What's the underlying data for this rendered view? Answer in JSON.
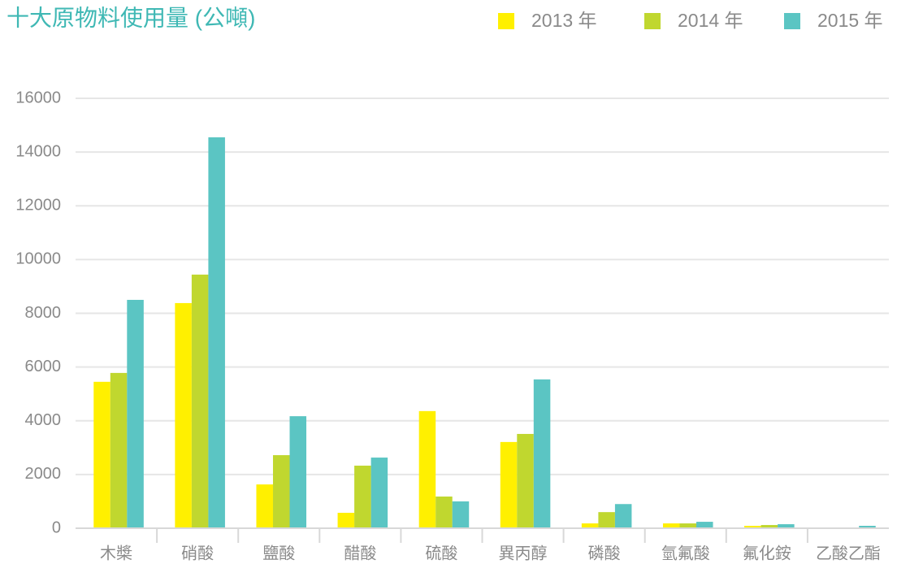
{
  "chart_data": {
    "type": "bar",
    "title": "十大原物料使用量 (公噸)",
    "categories": [
      "木槳",
      "硝酸",
      "鹽酸",
      "醋酸",
      "硫酸",
      "異丙醇",
      "磷酸",
      "氫氟酸",
      "氟化銨",
      "乙酸乙酯"
    ],
    "series": [
      {
        "name": "2013 年",
        "color": "#fff000",
        "values": [
          5450,
          8380,
          1630,
          575,
          4360,
          3210,
          180,
          180,
          90,
          20
        ]
      },
      {
        "name": "2014 年",
        "color": "#c0d72f",
        "values": [
          5780,
          9440,
          2720,
          2330,
          1180,
          3510,
          600,
          180,
          120,
          30
        ]
      },
      {
        "name": "2015 年",
        "color": "#5bc5c3",
        "values": [
          8500,
          14550,
          4170,
          2630,
          1000,
          5540,
          900,
          240,
          150,
          90
        ]
      }
    ],
    "ylim": [
      0,
      16000
    ],
    "yticks": [
      0,
      2000,
      4000,
      6000,
      8000,
      10000,
      12000,
      14000,
      16000
    ],
    "grid": true
  }
}
